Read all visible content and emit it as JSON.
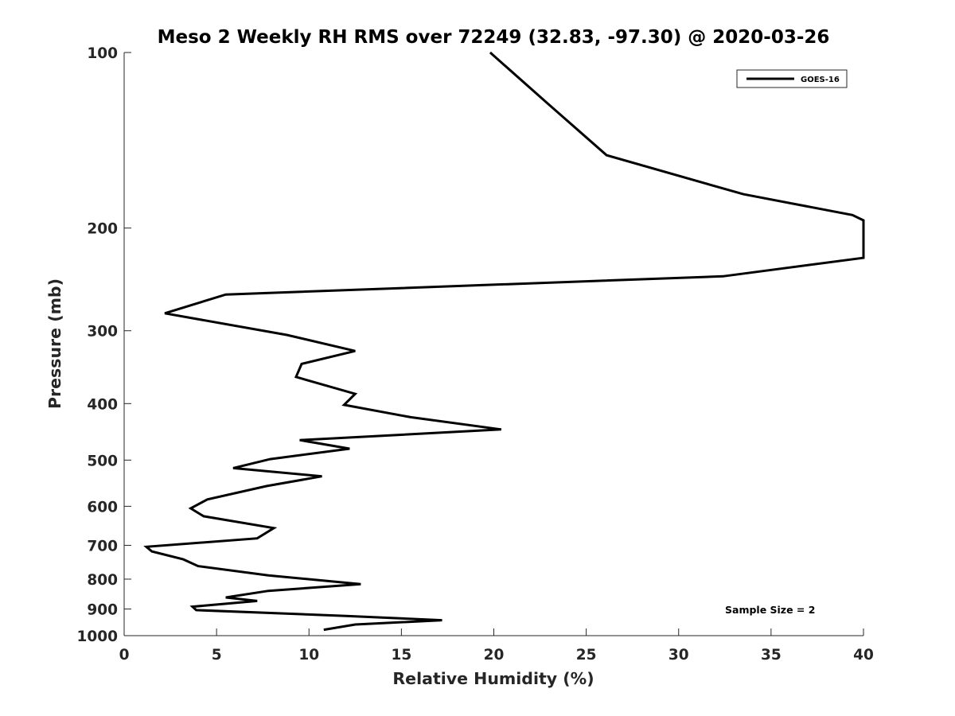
{
  "chart_data": {
    "type": "line",
    "title": "Meso 2 Weekly RH RMS over 72249 (32.83, -97.30) @ 2020-03-26",
    "xlabel": "Relative Humidity (%)",
    "ylabel": "Pressure (mb)",
    "xlim": [
      0,
      40
    ],
    "ylim": [
      100,
      1000
    ],
    "y_scale": "log",
    "y_reversed": true,
    "grid": false,
    "legend_position": "top-right",
    "x_ticks": [
      0,
      5,
      10,
      15,
      20,
      25,
      30,
      35,
      40
    ],
    "x_tick_labels": [
      "0",
      "5",
      "10",
      "15",
      "20",
      "25",
      "30",
      "35",
      "40"
    ],
    "y_ticks": [
      100,
      200,
      300,
      400,
      500,
      600,
      700,
      800,
      900,
      1000
    ],
    "y_tick_labels": [
      "100",
      "200",
      "300",
      "400",
      "500",
      "600",
      "700",
      "800",
      "900",
      "1000"
    ],
    "series": [
      {
        "name": "GOES-16",
        "color": "#000000",
        "points": [
          [
            19.8,
            100
          ],
          [
            23.0,
            123
          ],
          [
            26.1,
            150
          ],
          [
            33.5,
            175
          ],
          [
            39.4,
            190
          ],
          [
            40.0,
            194
          ],
          [
            40.0,
            225
          ],
          [
            32.4,
            242
          ],
          [
            5.5,
            260
          ],
          [
            2.2,
            280
          ],
          [
            8.8,
            305
          ],
          [
            12.5,
            325
          ],
          [
            9.6,
            342
          ],
          [
            9.3,
            360
          ],
          [
            12.5,
            385
          ],
          [
            11.9,
            402
          ],
          [
            15.5,
            422
          ],
          [
            20.4,
            443
          ],
          [
            9.5,
            462
          ],
          [
            12.2,
            478
          ],
          [
            7.9,
            498
          ],
          [
            5.9,
            516
          ],
          [
            10.7,
            533
          ],
          [
            7.7,
            554
          ],
          [
            4.5,
            584
          ],
          [
            3.6,
            605
          ],
          [
            4.3,
            624
          ],
          [
            8.1,
            654
          ],
          [
            7.2,
            681
          ],
          [
            1.2,
            704
          ],
          [
            1.5,
            717
          ],
          [
            3.2,
            740
          ],
          [
            4.0,
            760
          ],
          [
            7.8,
            788
          ],
          [
            12.8,
            816
          ],
          [
            7.8,
            838
          ],
          [
            5.5,
            860
          ],
          [
            7.2,
            872
          ],
          [
            3.7,
            892
          ],
          [
            3.9,
            904
          ],
          [
            12.0,
            925
          ],
          [
            17.2,
            941
          ],
          [
            12.5,
            957
          ],
          [
            10.8,
            977
          ]
        ]
      }
    ],
    "annotation": "Sample Size = 2"
  }
}
